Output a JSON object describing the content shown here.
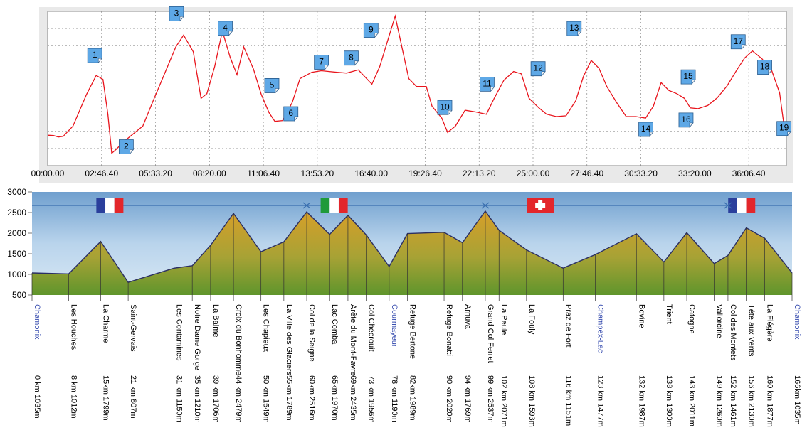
{
  "chart_data": [
    {
      "type": "line",
      "title": "",
      "xlabel": "",
      "ylabel": "",
      "x_ticks": [
        "00:00.00",
        "02:46.40",
        "05:33.20",
        "08:20.00",
        "11:06.40",
        "13:53.20",
        "16:40.00",
        "19:26.40",
        "22:13.20",
        "25:00.00",
        "27:46.40",
        "30:33.20",
        "33:20.00",
        "36:06.40"
      ],
      "grid": true,
      "line_color": "#e8141c",
      "waypoints": [
        "1",
        "2",
        "3",
        "4",
        "5",
        "6",
        "7",
        "8",
        "9",
        "10",
        "11",
        "12",
        "13",
        "14",
        "15",
        "16",
        "17",
        "18",
        "19"
      ],
      "x": [
        0.0,
        0.3,
        0.55,
        0.8,
        1.3,
        2.0,
        2.5,
        2.85,
        3.1,
        3.3,
        3.55,
        3.9,
        4.4,
        4.9,
        5.4,
        6.0,
        6.6,
        7.0,
        7.5,
        7.9,
        8.2,
        8.6,
        9.0,
        9.4,
        9.75,
        10.1,
        10.6,
        11.0,
        11.4,
        11.7,
        12.1,
        12.6,
        13.0,
        13.6,
        14.1,
        14.5,
        14.9,
        15.4,
        16.0,
        16.7,
        17.1,
        17.6,
        17.9,
        18.2,
        18.6,
        19.0,
        19.5,
        19.8,
        20.3,
        20.6,
        21.0,
        21.5,
        22.0,
        22.6,
        23.0,
        23.5,
        24.0,
        24.4,
        24.8,
        25.3,
        25.7,
        26.2,
        26.7,
        27.2,
        27.6,
        28.0,
        28.4,
        28.8,
        29.3,
        29.8,
        30.3,
        30.8,
        31.2,
        31.6,
        32.0,
        32.4,
        32.8,
        33.1,
        33.5,
        34.0,
        34.5,
        35.0,
        35.5,
        35.9,
        36.3,
        36.8,
        37.3,
        37.7,
        38.0
      ],
      "values": [
        1035,
        1030,
        1012,
        1020,
        1150,
        1550,
        1790,
        1740,
        1300,
        807,
        860,
        950,
        1050,
        1150,
        1450,
        1800,
        2150,
        2300,
        2090,
        1500,
        1560,
        1900,
        2350,
        2020,
        1800,
        2150,
        1870,
        1550,
        1320,
        1210,
        1220,
        1450,
        1750,
        1830,
        1850,
        1840,
        1830,
        1820,
        1860,
        1680,
        1900,
        2300,
        2540,
        2200,
        1750,
        1650,
        1650,
        1400,
        1250,
        1070,
        1150,
        1350,
        1330,
        1300,
        1500,
        1730,
        1840,
        1810,
        1500,
        1380,
        1300,
        1270,
        1280,
        1470,
        1780,
        1980,
        1880,
        1650,
        1450,
        1270,
        1270,
        1250,
        1400,
        1700,
        1600,
        1560,
        1500,
        1380,
        1370,
        1410,
        1510,
        1660,
        1860,
        2010,
        2100,
        2000,
        1850,
        1570,
        1030
      ]
    },
    {
      "type": "area",
      "title": "",
      "xlabel": "",
      "ylabel": "",
      "ylim": [
        500,
        3000
      ],
      "y_ticks": [
        "3000",
        "2500",
        "2000",
        "1500",
        "1000",
        "500"
      ],
      "grid": false,
      "places": [
        "Chamonix",
        "Les Houches",
        "La Charme",
        "Saint-Gervais",
        "Les Contamines",
        "Notre Dame Gorge",
        "La Balme",
        "Croix du Bonhomme",
        "Les Chapieux",
        "La Ville des Glaciers",
        "Col de la Seigne",
        "Lac Combal",
        "Arête du Mont-Favre",
        "Col Chécrouit",
        "Courmayeur",
        "Refuge Bertone",
        "Refuge Bonatti",
        "Arnuva",
        "Grand Col Ferret",
        "La Peule",
        "La Fouly",
        "Praz de Fort",
        "Champex-Lac",
        "Bovine",
        "Trient",
        "Catogne",
        "Vallorcine",
        "Col des Montets",
        "Tête aux Vents",
        "La Flégère",
        "Chamonix"
      ],
      "distance_labels": [
        "0 km 1035m",
        "8 km 1012m",
        "15km 1799m",
        "21 km 807m",
        "31 km 1150m",
        "35 km 1210m",
        "39 km 1706m",
        "44 km 2479m",
        "50 km 1549m",
        "55km 1789m",
        "60km 2516m",
        "65km 1970m",
        "69km 2435m",
        "73 km 1956m",
        "78 km 1190m",
        "82km 1989m",
        "90 km 2020m",
        "94 km 1769m",
        "99 km 2537m",
        "102 km 2071m",
        "108 km 1593m",
        "116 km 1151m",
        "123 km 1477m",
        "132 km 1987m",
        "138 km 1300m",
        "143 km 2011m",
        "149 km 1260m",
        "152 km 1461m",
        "156 km 2130m",
        "160 km 1877m",
        "166km 1035m"
      ],
      "km": [
        0,
        8,
        15,
        21,
        31,
        35,
        39,
        44,
        50,
        55,
        60,
        65,
        69,
        73,
        78,
        82,
        90,
        94,
        99,
        102,
        108,
        116,
        123,
        132,
        138,
        143,
        149,
        152,
        156,
        160,
        166
      ],
      "elevation": [
        1035,
        1012,
        1799,
        807,
        1150,
        1210,
        1706,
        2479,
        1549,
        1789,
        2516,
        1970,
        2435,
        1956,
        1190,
        1989,
        2020,
        1769,
        2537,
        2071,
        1593,
        1151,
        1477,
        1987,
        1300,
        2011,
        1260,
        1461,
        2130,
        1877,
        1035
      ],
      "blue_places": [
        "Chamonix",
        "Courmayeur",
        "Champex-Lac"
      ],
      "flags": [
        "france",
        "italy",
        "switzerland",
        "france"
      ],
      "border_crossings": [
        "Col de la Seigne",
        "Grand Col Ferret",
        "Col des Montets"
      ],
      "colors": {
        "sky": "#a9c9e6",
        "slope_top": "#d7a22a",
        "slope_bottom": "#6f9a2e",
        "ridge_line": "#2b2f63"
      }
    }
  ]
}
